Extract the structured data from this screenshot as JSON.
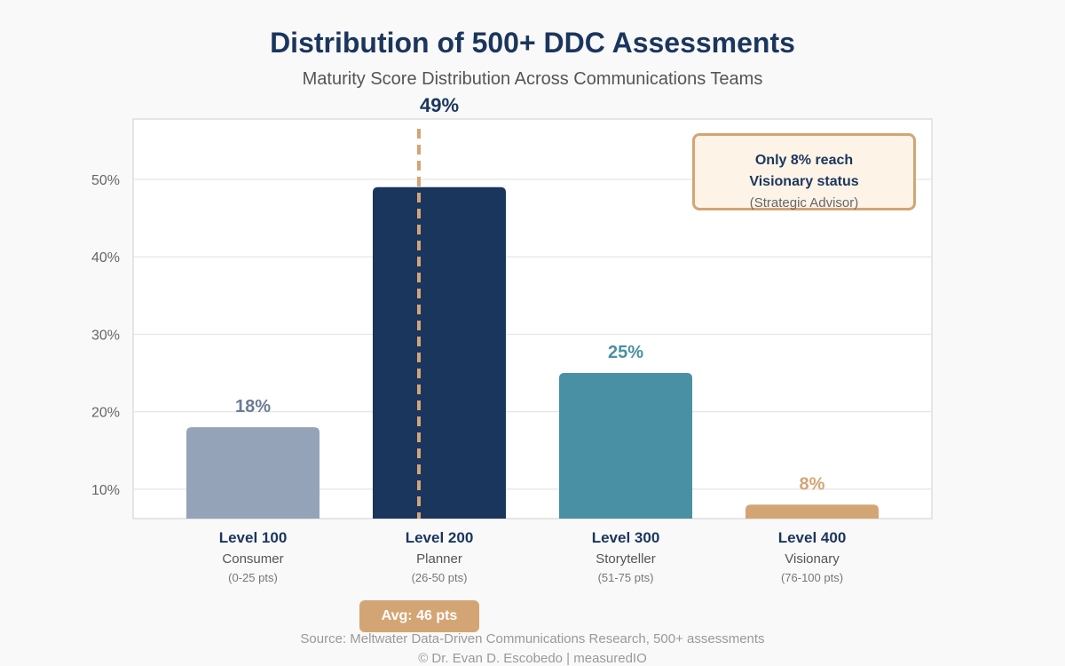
{
  "chart_data": {
    "type": "bar",
    "title": "Distribution of 500+ DDC Assessments",
    "subtitle": "Maturity Score Distribution Across Communications Teams",
    "categories": [
      "Level 100",
      "Level 200",
      "Level 300",
      "Level 400"
    ],
    "category_names": [
      "Consumer",
      "Planner",
      "Storyteller",
      "Visionary"
    ],
    "category_ranges": [
      "(0-25 pts)",
      "(26-50 pts)",
      "(51-75 pts)",
      "(76-100 pts)"
    ],
    "values": [
      18,
      49,
      25,
      8
    ],
    "value_labels": [
      "18%",
      "49%",
      "25%",
      "8%"
    ],
    "bar_colors": [
      "#94a3b8",
      "#1b365d",
      "#4a90a4",
      "#d4a574"
    ],
    "label_colors": [
      "#6b7d93",
      "#1b365d",
      "#4a90a4",
      "#d4a574"
    ],
    "yticks": [
      10,
      20,
      30,
      40,
      50
    ],
    "ytick_labels": [
      "10%",
      "20%",
      "30%",
      "40%",
      "50%"
    ],
    "ylim": [
      6.2,
      57.8
    ],
    "xlabel": "",
    "ylabel": "",
    "grid": true,
    "average_marker": {
      "value_pts": 46,
      "label": "Avg: 46 pts",
      "category_position": 1.3
    },
    "callout": {
      "line1": "Only 8% reach",
      "line2": "Visionary status",
      "line3": "(Strategic Advisor)"
    }
  },
  "footer": {
    "source": "Source: Meltwater Data-Driven Communications Research, 500+ assessments",
    "copyright": "© Dr. Evan D. Escobedo | measuredIO"
  },
  "colors": {
    "navy": "#1b365d",
    "accent": "#d4a574",
    "teal": "#4a90a4",
    "slate": "#94a3b8"
  }
}
